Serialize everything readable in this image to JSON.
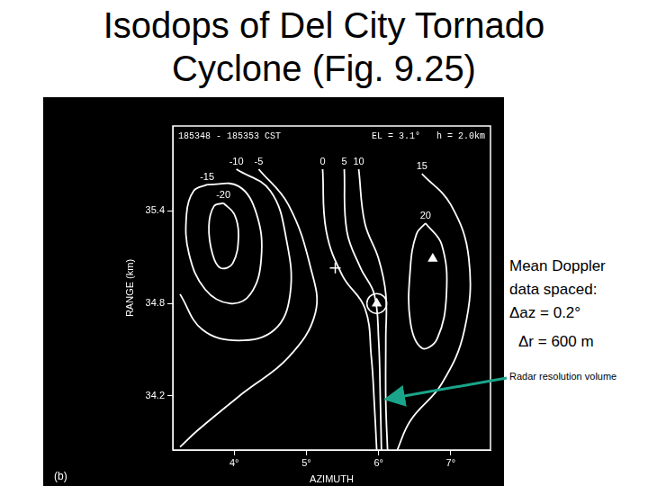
{
  "slide": {
    "title": "Isodops of Del City Tornado Cyclone (Fig. 9.25)",
    "notes": [
      "Mean Doppler",
      "data spaced:",
      "Δaz = 0.2°",
      "Δr = 600 m"
    ],
    "arrow_label": "Radar resolution volume"
  },
  "chart_data": {
    "type": "line",
    "title": "185348 - 185353 CST",
    "subtitle": "EL = 3.1°   h = 2.0km",
    "panel_label": "(b)",
    "x_label": "AZIMUTH",
    "y_label": "RANGE (km)",
    "xlim": [
      3.15,
      7.55
    ],
    "ylim": [
      33.85,
      35.95
    ],
    "xticks": [
      {
        "value": 4,
        "label": "4°"
      },
      {
        "value": 5,
        "label": "5°"
      },
      {
        "value": 6,
        "label": "6°"
      },
      {
        "value": 7,
        "label": "7°"
      }
    ],
    "yticks": [
      34.2,
      34.8,
      35.4
    ],
    "grid": false,
    "series": [
      {
        "name": "-20",
        "color": "#ffffff",
        "values": [
          {
            "x": 3.85,
            "y": 35.45
          },
          {
            "x": 4.0,
            "y": 35.38
          },
          {
            "x": 4.06,
            "y": 35.24
          },
          {
            "x": 3.98,
            "y": 35.06
          },
          {
            "x": 3.81,
            "y": 35.03
          },
          {
            "x": 3.7,
            "y": 35.12
          },
          {
            "x": 3.65,
            "y": 35.3
          },
          {
            "x": 3.72,
            "y": 35.43
          },
          {
            "x": 3.85,
            "y": 35.45
          }
        ]
      },
      {
        "name": "-15",
        "color": "#ffffff",
        "values": [
          {
            "x": 3.625,
            "y": 35.57
          },
          {
            "x": 4.06,
            "y": 35.56
          },
          {
            "x": 4.31,
            "y": 35.38
          },
          {
            "x": 4.375,
            "y": 35.09
          },
          {
            "x": 4.225,
            "y": 34.86
          },
          {
            "x": 3.94,
            "y": 34.8
          },
          {
            "x": 3.6,
            "y": 34.89
          },
          {
            "x": 3.375,
            "y": 35.12
          },
          {
            "x": 3.34,
            "y": 35.38
          },
          {
            "x": 3.44,
            "y": 35.53
          },
          {
            "x": 3.625,
            "y": 35.57
          }
        ]
      },
      {
        "name": "-10",
        "color": "#ffffff",
        "values": [
          {
            "x": 4.03,
            "y": 35.67
          },
          {
            "x": 4.5,
            "y": 35.53
          },
          {
            "x": 4.725,
            "y": 35.21
          },
          {
            "x": 4.775,
            "y": 34.86
          },
          {
            "x": 4.56,
            "y": 34.63
          },
          {
            "x": 4.06,
            "y": 34.56
          },
          {
            "x": 3.56,
            "y": 34.63
          },
          {
            "x": 3.25,
            "y": 34.86
          }
        ]
      },
      {
        "name": "-5",
        "color": "#ffffff",
        "values": [
          {
            "x": 4.34,
            "y": 35.67
          },
          {
            "x": 4.75,
            "y": 35.44
          },
          {
            "x": 5.06,
            "y": 35.03
          },
          {
            "x": 5.125,
            "y": 34.74
          },
          {
            "x": 4.75,
            "y": 34.45
          },
          {
            "x": 4.125,
            "y": 34.22
          },
          {
            "x": 3.5,
            "y": 33.98
          },
          {
            "x": 3.25,
            "y": 33.87
          }
        ]
      },
      {
        "name": "0",
        "color": "#ffffff",
        "values": [
          {
            "x": 5.225,
            "y": 35.67
          },
          {
            "x": 5.275,
            "y": 35.27
          },
          {
            "x": 5.5,
            "y": 34.98
          },
          {
            "x": 5.81,
            "y": 34.77
          },
          {
            "x": 5.9,
            "y": 34.45
          },
          {
            "x": 5.94,
            "y": 34.16
          },
          {
            "x": 5.975,
            "y": 33.84
          }
        ]
      },
      {
        "name": "5",
        "color": "#ffffff",
        "values": [
          {
            "x": 5.525,
            "y": 35.67
          },
          {
            "x": 5.56,
            "y": 35.27
          },
          {
            "x": 5.75,
            "y": 35.03
          },
          {
            "x": 5.94,
            "y": 34.86
          },
          {
            "x": 6.0,
            "y": 34.57
          },
          {
            "x": 6.025,
            "y": 34.16
          },
          {
            "x": 6.04,
            "y": 33.84
          }
        ]
      },
      {
        "name": "10",
        "color": "#ffffff",
        "values": [
          {
            "x": 5.725,
            "y": 35.67
          },
          {
            "x": 5.81,
            "y": 35.32
          },
          {
            "x": 6.0,
            "y": 35.09
          },
          {
            "x": 6.1,
            "y": 34.86
          },
          {
            "x": 6.1,
            "y": 34.57
          },
          {
            "x": 6.1,
            "y": 34.16
          },
          {
            "x": 6.125,
            "y": 33.84
          }
        ]
      },
      {
        "name": "15",
        "color": "#ffffff",
        "values": [
          {
            "x": 6.6,
            "y": 35.64
          },
          {
            "x": 7.0,
            "y": 35.44
          },
          {
            "x": 7.25,
            "y": 35.09
          },
          {
            "x": 7.19,
            "y": 34.63
          },
          {
            "x": 6.875,
            "y": 34.28
          },
          {
            "x": 6.44,
            "y": 34.04
          },
          {
            "x": 6.25,
            "y": 33.84
          }
        ]
      },
      {
        "name": "20",
        "color": "#ffffff",
        "values": [
          {
            "x": 6.65,
            "y": 35.32
          },
          {
            "x": 6.875,
            "y": 35.18
          },
          {
            "x": 6.94,
            "y": 34.86
          },
          {
            "x": 6.81,
            "y": 34.57
          },
          {
            "x": 6.6,
            "y": 34.51
          },
          {
            "x": 6.44,
            "y": 34.68
          },
          {
            "x": 6.44,
            "y": 35.03
          },
          {
            "x": 6.525,
            "y": 35.25
          },
          {
            "x": 6.65,
            "y": 35.32
          }
        ]
      },
      {
        "type": "scatter",
        "marker": "cross",
        "color": "#ffffff",
        "values": [
          {
            "x": 5.4,
            "y": 35.03
          }
        ]
      },
      {
        "type": "scatter",
        "marker": "triangle",
        "color": "#ffffff",
        "values": [
          {
            "x": 6.75,
            "y": 35.09
          },
          {
            "x": 5.975,
            "y": 34.8
          }
        ]
      },
      {
        "type": "scatter",
        "marker": "circle",
        "color": "#ffffff",
        "values": [
          {
            "x": 5.975,
            "y": 34.8
          }
        ]
      }
    ]
  }
}
